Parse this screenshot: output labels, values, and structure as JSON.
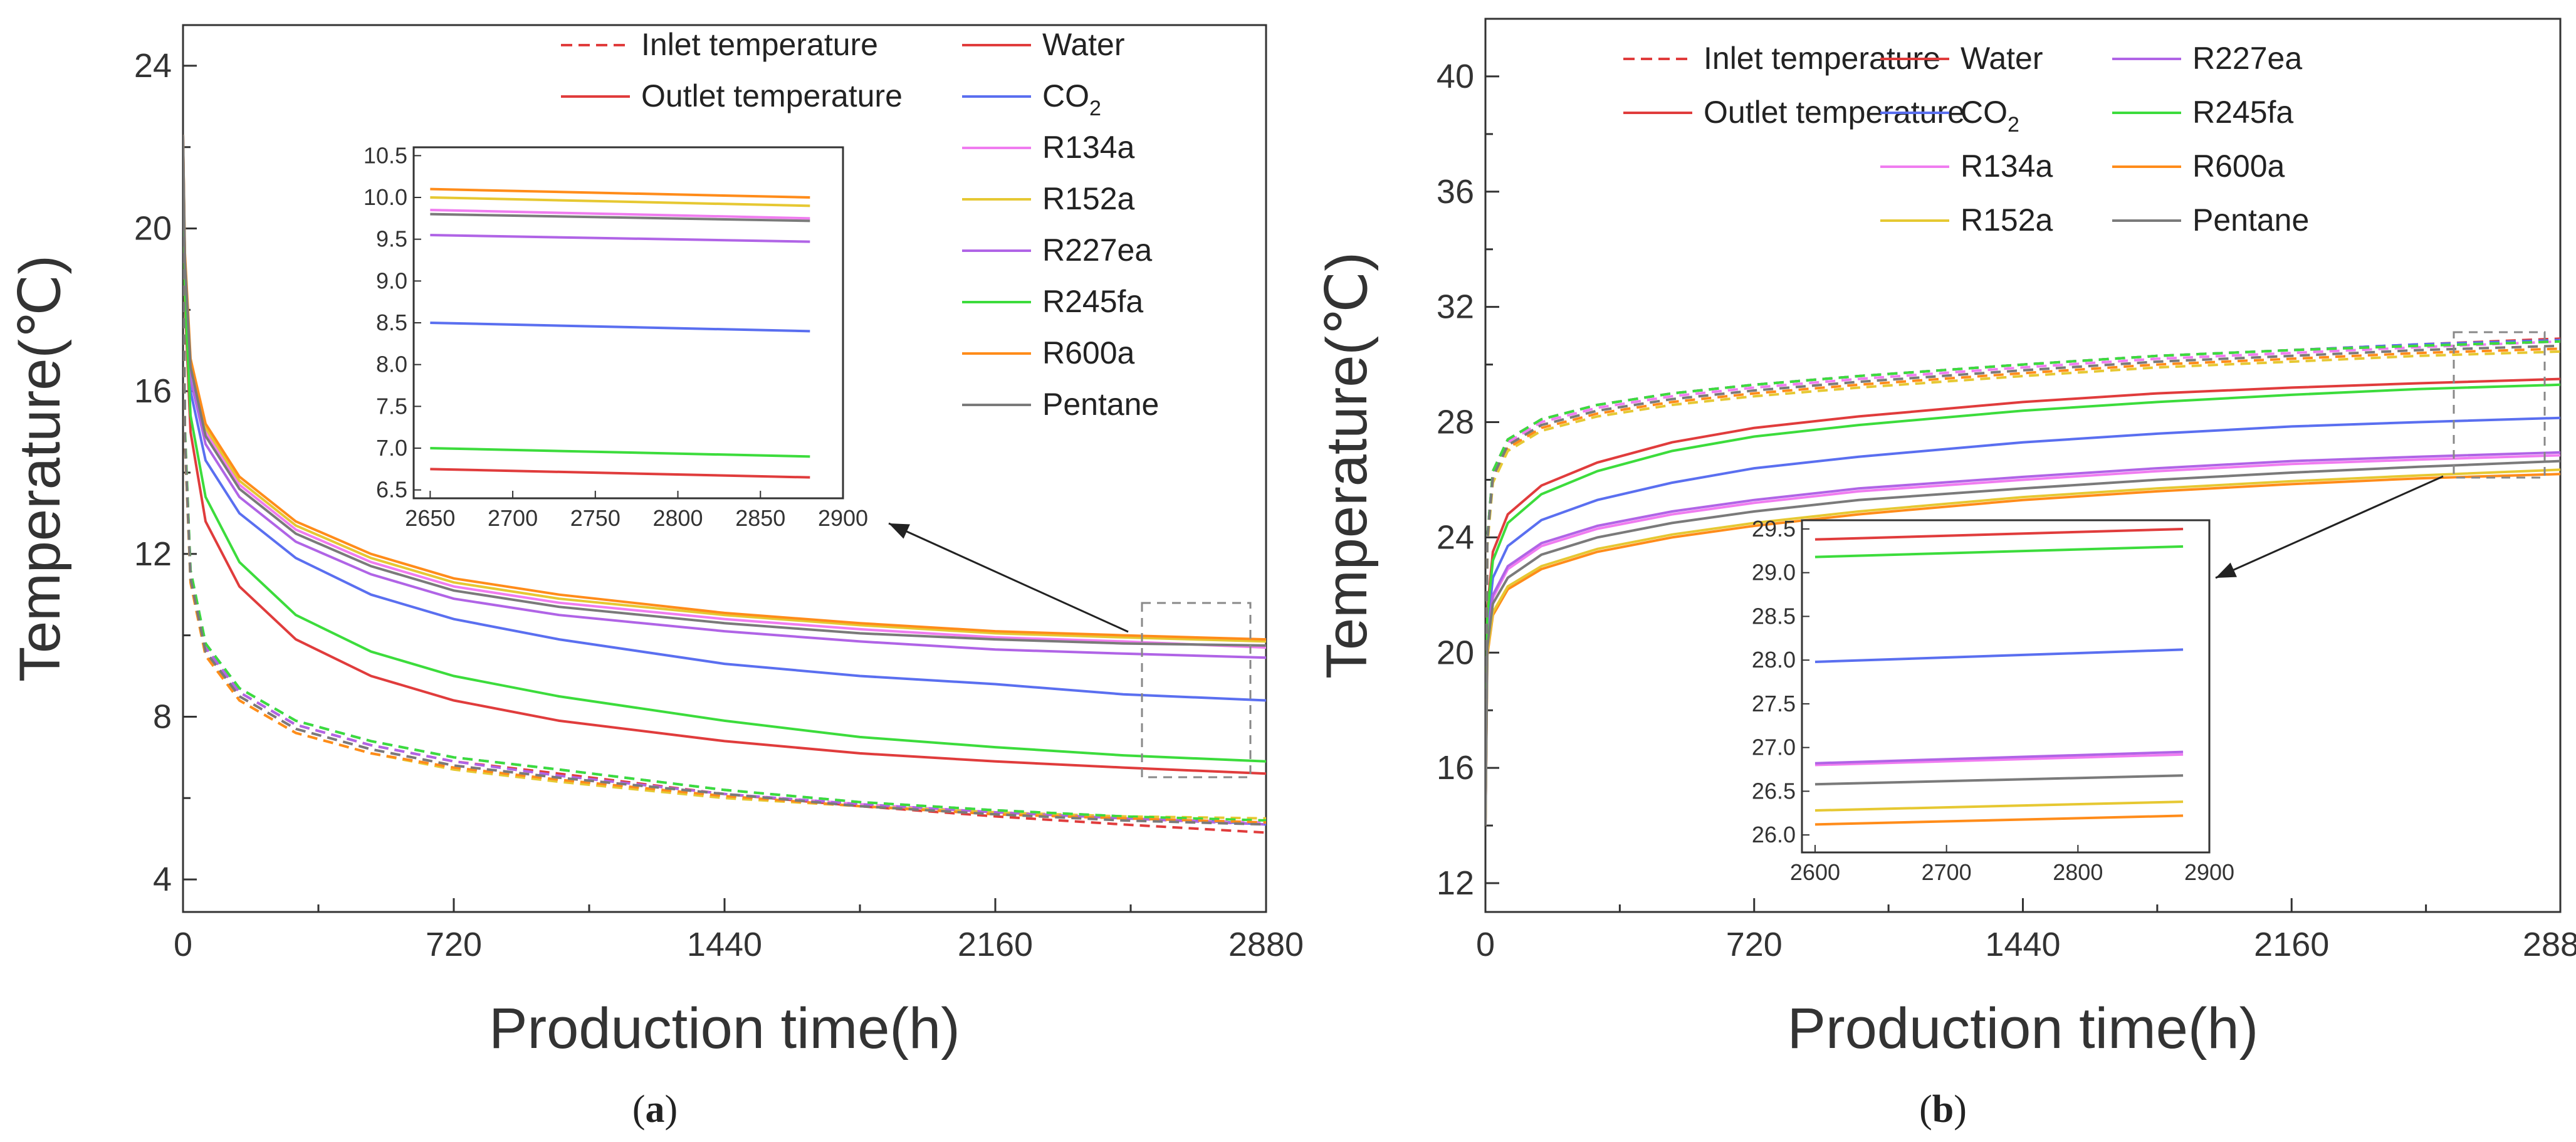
{
  "panel_labels": [
    "(a)",
    "(b)"
  ],
  "chart_data": [
    {
      "type": "line",
      "panel": "(a)",
      "xlabel": "Production time(h)",
      "ylabel": "Temperature(℃)",
      "xlim": [
        0,
        2880
      ],
      "ylim": [
        3.2,
        25
      ],
      "xticks": [
        0,
        720,
        1440,
        2160,
        2880
      ],
      "yticks": [
        4,
        8,
        12,
        16,
        20,
        24
      ],
      "x": [
        0,
        5,
        20,
        60,
        150,
        300,
        500,
        720,
        1000,
        1440,
        1800,
        2160,
        2500,
        2880
      ],
      "legend_position": "top-right",
      "legend_style": [
        {
          "label": "Inlet temperature",
          "dash": true
        },
        {
          "label": "Outlet temperature",
          "dash": false
        }
      ],
      "series": [
        {
          "name": "Water",
          "color": "#e03c3c",
          "outlet": [
            22.0,
            18.2,
            15.0,
            12.8,
            11.2,
            9.9,
            9.0,
            8.4,
            7.9,
            7.4,
            7.1,
            6.9,
            6.75,
            6.6
          ],
          "inlet": [
            21.0,
            15.0,
            11.5,
            9.7,
            8.6,
            7.8,
            7.3,
            6.9,
            6.6,
            6.1,
            5.8,
            5.55,
            5.35,
            5.15
          ]
        },
        {
          "name": "CO2",
          "label_main": "CO",
          "label_sub": "2",
          "color": "#5a6ff0",
          "outlet": [
            22.2,
            18.8,
            16.0,
            14.3,
            13.0,
            11.9,
            11.0,
            10.4,
            9.9,
            9.3,
            9.0,
            8.8,
            8.55,
            8.4
          ],
          "inlet": [
            21.0,
            15.0,
            11.6,
            9.8,
            8.7,
            7.9,
            7.4,
            7.0,
            6.7,
            6.2,
            5.9,
            5.7,
            5.55,
            5.35
          ]
        },
        {
          "name": "R134a",
          "color": "#f07cf0",
          "outlet": [
            22.3,
            19.2,
            16.6,
            15.0,
            13.7,
            12.6,
            11.8,
            11.2,
            10.8,
            10.4,
            10.15,
            9.95,
            9.85,
            9.7
          ],
          "inlet": [
            21.0,
            14.9,
            11.4,
            9.6,
            8.5,
            7.7,
            7.2,
            6.8,
            6.5,
            6.1,
            5.85,
            5.65,
            5.5,
            5.4
          ]
        },
        {
          "name": "R152a",
          "color": "#e6c832",
          "outlet": [
            22.3,
            19.3,
            16.7,
            15.1,
            13.8,
            12.7,
            11.9,
            11.3,
            10.9,
            10.5,
            10.25,
            10.05,
            9.95,
            9.85
          ],
          "inlet": [
            21.0,
            14.8,
            11.3,
            9.5,
            8.4,
            7.6,
            7.1,
            6.7,
            6.4,
            6.0,
            5.8,
            5.65,
            5.55,
            5.5
          ]
        },
        {
          "name": "R227ea",
          "color": "#b064e6",
          "outlet": [
            22.2,
            19.0,
            16.3,
            14.7,
            13.4,
            12.3,
            11.5,
            10.9,
            10.5,
            10.1,
            9.85,
            9.65,
            9.55,
            9.45
          ],
          "inlet": [
            21.0,
            15.0,
            11.5,
            9.7,
            8.6,
            7.8,
            7.3,
            6.9,
            6.55,
            6.1,
            5.85,
            5.65,
            5.5,
            5.35
          ]
        },
        {
          "name": "R245fa",
          "color": "#3cdc3c",
          "outlet": [
            22.1,
            18.4,
            15.4,
            13.4,
            11.8,
            10.5,
            9.6,
            9.0,
            8.5,
            7.9,
            7.5,
            7.25,
            7.05,
            6.9
          ],
          "inlet": [
            21.0,
            15.1,
            11.6,
            9.8,
            8.7,
            7.9,
            7.4,
            7.0,
            6.7,
            6.2,
            5.9,
            5.7,
            5.55,
            5.45
          ]
        },
        {
          "name": "R600a",
          "color": "#ff8c1a",
          "outlet": [
            22.3,
            19.4,
            16.8,
            15.2,
            13.9,
            12.8,
            12.0,
            11.4,
            11.0,
            10.55,
            10.3,
            10.1,
            10.0,
            9.9
          ],
          "inlet": [
            21.0,
            14.8,
            11.3,
            9.5,
            8.4,
            7.6,
            7.1,
            6.75,
            6.45,
            6.05,
            5.8,
            5.6,
            5.5,
            5.4
          ]
        },
        {
          "name": "Pentane",
          "color": "#7a7a7a",
          "outlet": [
            22.3,
            19.2,
            16.6,
            14.9,
            13.6,
            12.5,
            11.7,
            11.1,
            10.7,
            10.3,
            10.05,
            9.9,
            9.8,
            9.75
          ],
          "inlet": [
            21.0,
            14.9,
            11.4,
            9.6,
            8.5,
            7.7,
            7.2,
            6.8,
            6.5,
            6.1,
            5.8,
            5.6,
            5.45,
            5.35
          ]
        }
      ],
      "inset": {
        "xlim": [
          2640,
          2900
        ],
        "ylim": [
          6.4,
          10.6
        ],
        "xticks": [
          2650,
          2700,
          2750,
          2800,
          2850,
          2900
        ],
        "yticks": [
          6.5,
          7.0,
          7.5,
          8.0,
          8.5,
          9.0,
          9.5,
          10.0,
          10.5
        ],
        "x": [
          2650,
          2880
        ],
        "series": [
          {
            "name": "Water",
            "values": [
              6.75,
              6.65
            ]
          },
          {
            "name": "CO2",
            "values": [
              8.5,
              8.4
            ]
          },
          {
            "name": "R134a",
            "values": [
              9.85,
              9.75
            ]
          },
          {
            "name": "R152a",
            "values": [
              10.0,
              9.9
            ]
          },
          {
            "name": "R227ea",
            "values": [
              9.55,
              9.47
            ]
          },
          {
            "name": "R245fa",
            "values": [
              7.0,
              6.9
            ]
          },
          {
            "name": "R600a",
            "values": [
              10.1,
              10.0
            ]
          },
          {
            "name": "Pentane",
            "values": [
              9.8,
              9.72
            ]
          }
        ]
      }
    },
    {
      "type": "line",
      "panel": "(b)",
      "xlabel": "Production time(h)",
      "ylabel": "Temperature(℃)",
      "xlim": [
        0,
        2880
      ],
      "ylim": [
        11,
        42
      ],
      "xticks": [
        0,
        720,
        1440,
        2160,
        2880
      ],
      "yticks": [
        12,
        16,
        20,
        24,
        28,
        32,
        36,
        40
      ],
      "x": [
        0,
        5,
        20,
        60,
        150,
        300,
        500,
        720,
        1000,
        1440,
        1800,
        2160,
        2500,
        2880
      ],
      "legend_position": "top-right",
      "legend_style": [
        {
          "label": "Inlet temperature",
          "dash": true
        },
        {
          "label": "Outlet temperature",
          "dash": false
        }
      ],
      "series": [
        {
          "name": "Water",
          "color": "#e03c3c",
          "outlet": [
            14.0,
            21.5,
            23.5,
            24.8,
            25.8,
            26.6,
            27.3,
            27.8,
            28.2,
            28.7,
            29.0,
            29.2,
            29.35,
            29.5
          ],
          "inlet": [
            15.0,
            24.0,
            26.3,
            27.4,
            28.1,
            28.6,
            29.0,
            29.3,
            29.6,
            30.0,
            30.3,
            30.5,
            30.7,
            30.9
          ]
        },
        {
          "name": "CO2",
          "label_main": "CO",
          "label_sub": "2",
          "color": "#5a6ff0",
          "outlet": [
            14.0,
            20.8,
            22.6,
            23.7,
            24.6,
            25.3,
            25.9,
            26.4,
            26.8,
            27.3,
            27.6,
            27.85,
            28.0,
            28.15
          ],
          "inlet": [
            15.0,
            24.0,
            26.3,
            27.4,
            28.1,
            28.6,
            29.0,
            29.3,
            29.6,
            30.0,
            30.3,
            30.5,
            30.7,
            30.85
          ]
        },
        {
          "name": "R134a",
          "color": "#f07cf0",
          "outlet": [
            14.0,
            20.3,
            21.9,
            22.9,
            23.7,
            24.3,
            24.8,
            25.2,
            25.6,
            26.0,
            26.3,
            26.55,
            26.7,
            26.85
          ],
          "inlet": [
            15.0,
            24.0,
            26.2,
            27.3,
            28.0,
            28.5,
            28.9,
            29.2,
            29.5,
            29.9,
            30.2,
            30.4,
            30.6,
            30.8
          ]
        },
        {
          "name": "R227ea",
          "color": "#b064e6",
          "outlet": [
            14.0,
            20.4,
            22.0,
            23.0,
            23.8,
            24.4,
            24.9,
            25.3,
            25.7,
            26.1,
            26.4,
            26.65,
            26.8,
            26.95
          ],
          "inlet": [
            15.0,
            24.0,
            26.3,
            27.4,
            28.1,
            28.6,
            29.0,
            29.3,
            29.6,
            30.0,
            30.3,
            30.5,
            30.65,
            30.8
          ]
        },
        {
          "name": "R245fa",
          "color": "#3cdc3c",
          "outlet": [
            14.0,
            21.3,
            23.2,
            24.5,
            25.5,
            26.3,
            27.0,
            27.5,
            27.9,
            28.4,
            28.7,
            28.95,
            29.15,
            29.3
          ],
          "inlet": [
            15.0,
            24.0,
            26.3,
            27.4,
            28.1,
            28.6,
            29.0,
            29.3,
            29.6,
            30.0,
            30.3,
            30.5,
            30.65,
            30.8
          ]
        },
        {
          "name": "R600a",
          "color": "#ff8c1a",
          "outlet": [
            14.0,
            19.9,
            21.3,
            22.2,
            22.9,
            23.5,
            24.0,
            24.4,
            24.8,
            25.3,
            25.6,
            25.85,
            26.05,
            26.2
          ],
          "inlet": [
            15.0,
            23.8,
            26.0,
            27.1,
            27.8,
            28.3,
            28.7,
            29.0,
            29.3,
            29.7,
            30.0,
            30.2,
            30.4,
            30.55
          ]
        },
        {
          "name": "R152a",
          "color": "#e6c832",
          "outlet": [
            14.0,
            20.0,
            21.4,
            22.3,
            23.0,
            23.6,
            24.1,
            24.5,
            24.9,
            25.4,
            25.7,
            25.95,
            26.15,
            26.35
          ],
          "inlet": [
            15.0,
            23.7,
            25.9,
            27.0,
            27.7,
            28.2,
            28.6,
            28.9,
            29.2,
            29.6,
            29.9,
            30.1,
            30.3,
            30.45
          ]
        },
        {
          "name": "Pentane",
          "color": "#7a7a7a",
          "outlet": [
            14.0,
            20.2,
            21.7,
            22.6,
            23.4,
            24.0,
            24.5,
            24.9,
            25.3,
            25.7,
            26.0,
            26.25,
            26.45,
            26.65
          ],
          "inlet": [
            15.0,
            23.9,
            26.1,
            27.2,
            27.9,
            28.4,
            28.8,
            29.1,
            29.4,
            29.8,
            30.1,
            30.3,
            30.5,
            30.65
          ]
        }
      ],
      "inset": {
        "xlim": [
          2590,
          2900
        ],
        "ylim": [
          25.8,
          29.6
        ],
        "xticks": [
          2600,
          2700,
          2800,
          2900
        ],
        "yticks": [
          26.0,
          26.5,
          27.0,
          27.5,
          28.0,
          28.5,
          29.0,
          29.5
        ],
        "x": [
          2600,
          2880
        ],
        "series": [
          {
            "name": "Water",
            "values": [
              29.38,
              29.5
            ]
          },
          {
            "name": "CO2",
            "values": [
              27.98,
              28.12
            ]
          },
          {
            "name": "R134a",
            "values": [
              26.8,
              26.92
            ]
          },
          {
            "name": "R227ea",
            "values": [
              26.82,
              26.95
            ]
          },
          {
            "name": "R245fa",
            "values": [
              29.18,
              29.3
            ]
          },
          {
            "name": "R600a",
            "values": [
              26.12,
              26.22
            ]
          },
          {
            "name": "R152a",
            "values": [
              26.28,
              26.38
            ]
          },
          {
            "name": "Pentane",
            "values": [
              26.58,
              26.68
            ]
          }
        ]
      }
    }
  ]
}
